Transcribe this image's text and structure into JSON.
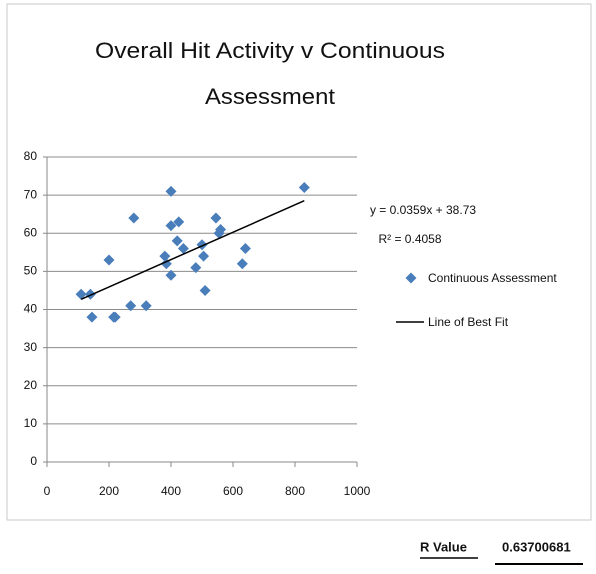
{
  "chart_data": {
    "type": "scatter",
    "title": [
      "Overall Hit Activity v Continuous",
      "Assessment"
    ],
    "series": [
      {
        "name": "Continuous Assessment",
        "color": "#4a7ebb",
        "x": [
          110,
          140,
          145,
          200,
          215,
          220,
          270,
          280,
          320,
          380,
          385,
          400,
          400,
          400,
          420,
          425,
          440,
          480,
          500,
          505,
          510,
          545,
          555,
          560,
          630,
          640,
          830
        ],
        "values": [
          44,
          44,
          38,
          53,
          38,
          38,
          41,
          64,
          41,
          54,
          52,
          49,
          71,
          62,
          58,
          63,
          56,
          51,
          57,
          54,
          45,
          64,
          60,
          61,
          52,
          56,
          72
        ]
      }
    ],
    "trendline": {
      "name": "Line of Best Fit",
      "color": "#000000",
      "slope": 0.0359,
      "intercept": 38.73,
      "x": [
        110,
        830
      ],
      "equation": "y = 0.0359x + 38.73",
      "r_squared": "R² = 0.4058"
    },
    "xlim": [
      0,
      1000
    ],
    "xticks": [
      0,
      200,
      400,
      600,
      800,
      1000
    ],
    "ylim": [
      0,
      80
    ],
    "yticks": [
      0,
      10,
      20,
      30,
      40,
      50,
      60,
      70,
      80
    ],
    "grid": true
  },
  "footer": {
    "label": "R Value",
    "value": "0.63700681"
  }
}
